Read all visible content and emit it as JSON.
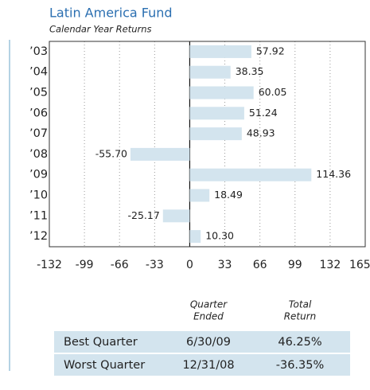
{
  "chart_data": {
    "type": "hbar",
    "title": "Latin America Fund",
    "subtitle": "Calendar Year Returns",
    "categories": [
      "’03",
      "’04",
      "’05",
      "’06",
      "’07",
      "’08",
      "’09",
      "’10",
      "’11",
      "’12"
    ],
    "values": [
      57.92,
      38.35,
      60.05,
      51.24,
      48.93,
      -55.7,
      114.36,
      18.49,
      -25.17,
      10.3
    ],
    "value_labels": [
      "57.92",
      "38.35",
      "60.05",
      "51.24",
      "48.93",
      "-55.70",
      "114.36",
      "18.49",
      "-25.17",
      "10.30"
    ],
    "color": "#d3e4ee",
    "xlim": [
      -132,
      165
    ],
    "xticks": [
      -132,
      -99,
      -66,
      -33,
      0,
      33,
      66,
      99,
      132,
      {
        "value": 165,
        "label": "165%"
      }
    ],
    "grid": true
  },
  "table": {
    "headers": [
      [
        "Quarter",
        "Ended"
      ],
      [
        "Total",
        "Return"
      ]
    ],
    "rows": [
      [
        "Best Quarter",
        "6/30/09",
        "46.25%"
      ],
      [
        "Worst Quarter",
        "12/31/08",
        "-36.35%"
      ]
    ]
  }
}
